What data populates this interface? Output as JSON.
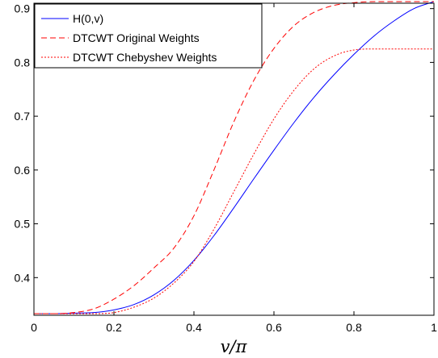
{
  "chart_data": {
    "type": "line",
    "title": "",
    "xlabel": "v/π",
    "ylabel": "",
    "xlim": [
      0,
      1
    ],
    "ylim": [
      0.33,
      0.91
    ],
    "x_ticks": [
      0,
      0.2,
      0.4,
      0.6,
      0.8,
      1
    ],
    "x_tick_labels": [
      "0",
      "0.2",
      "0.4",
      "0.6",
      "0.8",
      "1"
    ],
    "y_ticks": [
      0.4,
      0.5,
      0.6,
      0.7,
      0.8,
      0.9
    ],
    "y_tick_labels": [
      "0.4",
      "0.5",
      "0.6",
      "0.7",
      "0.8",
      "0.9"
    ],
    "grid": false,
    "legend_position": "top-left",
    "series": [
      {
        "name": "H(0,v)",
        "color": "#0000ff",
        "dash": "solid",
        "x": [
          0,
          0.05,
          0.1,
          0.15,
          0.2,
          0.25,
          0.3,
          0.35,
          0.4,
          0.45,
          0.5,
          0.55,
          0.6,
          0.65,
          0.7,
          0.75,
          0.8,
          0.85,
          0.9,
          0.95,
          1.0
        ],
        "y": [
          0.333,
          0.333,
          0.334,
          0.335,
          0.34,
          0.35,
          0.368,
          0.395,
          0.432,
          0.478,
          0.53,
          0.584,
          0.637,
          0.688,
          0.735,
          0.777,
          0.815,
          0.849,
          0.877,
          0.9,
          0.913
        ]
      },
      {
        "name": "DTCWT Original Weights",
        "color": "#ff0000",
        "dash": "dashed",
        "x": [
          0,
          0.05,
          0.1,
          0.15,
          0.2,
          0.25,
          0.3,
          0.35,
          0.4,
          0.45,
          0.5,
          0.55,
          0.6,
          0.65,
          0.7,
          0.75,
          0.8,
          0.85,
          0.9,
          0.95,
          1.0
        ],
        "y": [
          0.333,
          0.333,
          0.335,
          0.342,
          0.36,
          0.385,
          0.418,
          0.455,
          0.515,
          0.6,
          0.69,
          0.767,
          0.826,
          0.868,
          0.893,
          0.906,
          0.911,
          0.913,
          0.913,
          0.913,
          0.913
        ]
      },
      {
        "name": "DTCWT Chebyshev Weights",
        "color": "#ff0000",
        "dash": "dotted",
        "x": [
          0,
          0.05,
          0.1,
          0.15,
          0.2,
          0.25,
          0.3,
          0.35,
          0.4,
          0.45,
          0.5,
          0.55,
          0.6,
          0.65,
          0.7,
          0.75,
          0.8,
          0.85,
          0.9,
          0.95,
          1.0
        ],
        "y": [
          0.333,
          0.333,
          0.333,
          0.333,
          0.335,
          0.345,
          0.362,
          0.39,
          0.43,
          0.49,
          0.56,
          0.63,
          0.695,
          0.748,
          0.788,
          0.812,
          0.823,
          0.825,
          0.825,
          0.825,
          0.825
        ]
      }
    ]
  }
}
